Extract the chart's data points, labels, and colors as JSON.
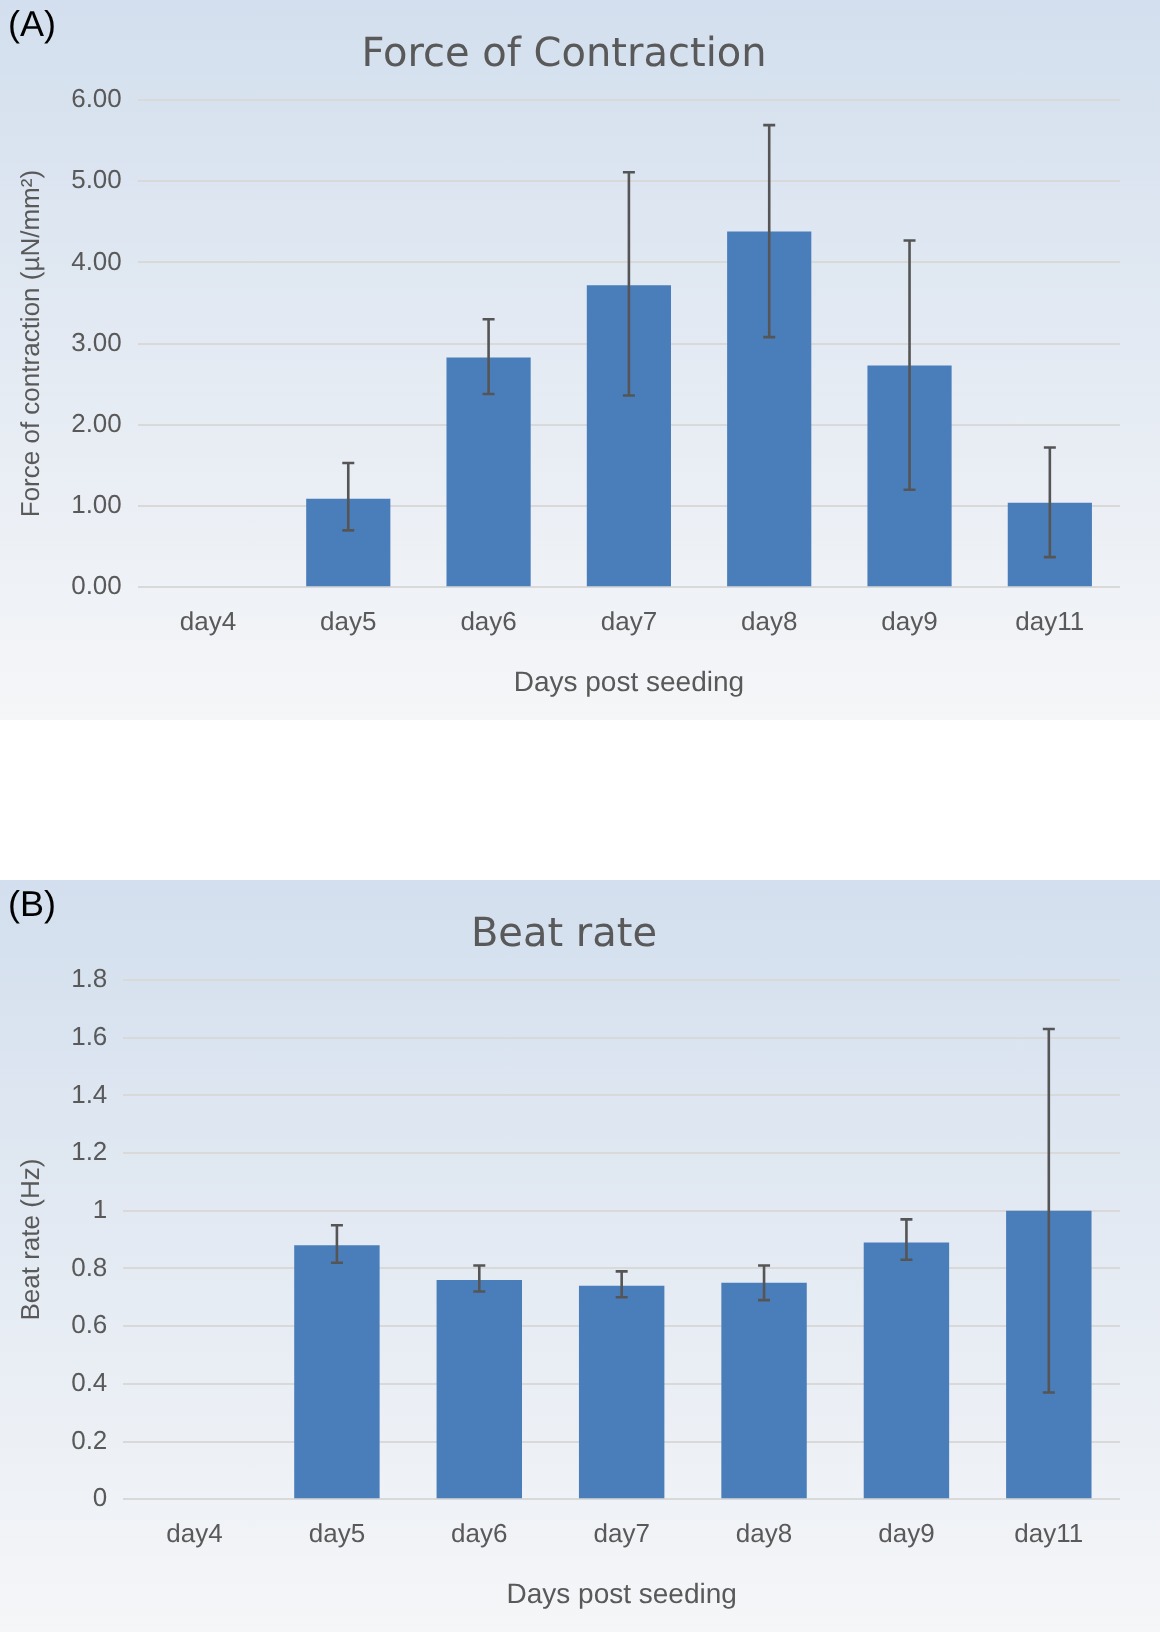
{
  "chart_data": [
    {
      "type": "bar",
      "title": "Force of Contraction",
      "xlabel": "Days post seeding",
      "ylabel": "Force of contraction (µN/mm²)",
      "annotations": [
        "(A)"
      ],
      "categories": [
        "day4",
        "day5",
        "day6",
        "day7",
        "day8",
        "day9",
        "day11"
      ],
      "values": [
        null,
        1.09,
        2.83,
        3.72,
        4.38,
        2.73,
        1.04
      ],
      "errors": [
        null,
        [
          0.7,
          1.53
        ],
        [
          2.38,
          3.3
        ],
        [
          2.36,
          5.11
        ],
        [
          3.08,
          5.69
        ],
        [
          1.2,
          4.27
        ],
        [
          0.37,
          1.72
        ]
      ],
      "color": "#4a7ebb",
      "ylim": [
        0,
        6
      ],
      "yticks": [
        {
          "value": 0,
          "label": "0.00"
        },
        {
          "value": 1,
          "label": "1.00"
        },
        {
          "value": 2,
          "label": "2.00"
        },
        {
          "value": 3,
          "label": "3.00"
        },
        {
          "value": 4,
          "label": "4.00"
        },
        {
          "value": 5,
          "label": "5.00"
        },
        {
          "value": 6,
          "label": "6.00"
        }
      ],
      "grid": "y",
      "legend": false
    },
    {
      "type": "bar",
      "title": "Beat rate",
      "xlabel": "Days post seeding",
      "ylabel": "Beat rate (Hz)",
      "annotations": [
        "(B)"
      ],
      "categories": [
        "day4",
        "day5",
        "day6",
        "day7",
        "day8",
        "day9",
        "day11"
      ],
      "values": [
        null,
        0.88,
        0.76,
        0.74,
        0.75,
        0.89,
        1.0
      ],
      "errors": [
        null,
        [
          0.82,
          0.95
        ],
        [
          0.72,
          0.81
        ],
        [
          0.7,
          0.79
        ],
        [
          0.69,
          0.81
        ],
        [
          0.83,
          0.97
        ],
        [
          0.37,
          1.63
        ]
      ],
      "color": "#4a7ebb",
      "ylim": [
        0,
        1.8
      ],
      "yticks": [
        0,
        0.2,
        0.4,
        0.6,
        0.8,
        1,
        1.2,
        1.4,
        1.6,
        1.8
      ],
      "grid": "y",
      "legend": false
    }
  ]
}
